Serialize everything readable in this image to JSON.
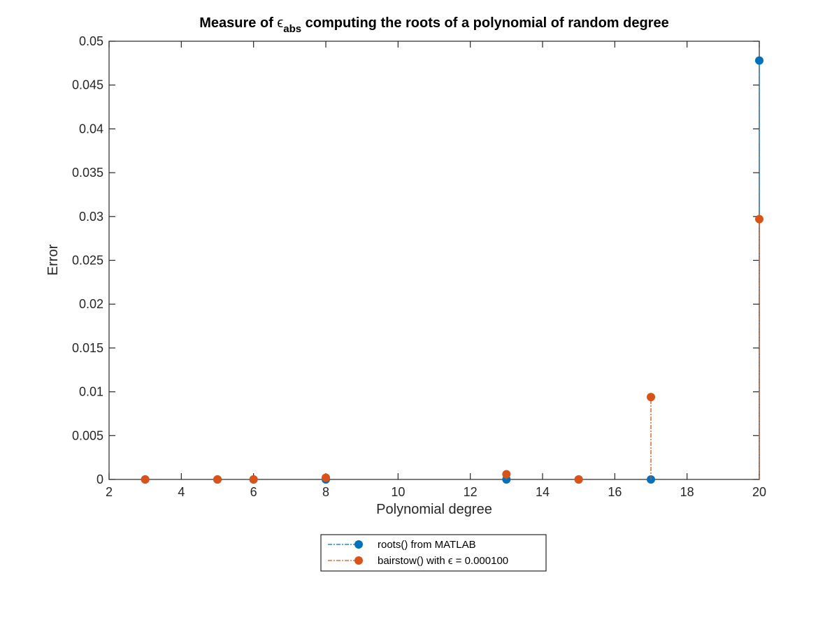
{
  "chart_data": {
    "type": "stem",
    "title": {
      "prefix": "Measure of ",
      "symbol": "ϵ",
      "subscript": "abs",
      "suffix": " computing the roots of a polynomial of random degree"
    },
    "xlabel": "Polynomial degree",
    "ylabel": "Error",
    "xlim": [
      2,
      20
    ],
    "ylim": [
      0,
      0.05
    ],
    "xticks": [
      "2",
      "4",
      "6",
      "8",
      "10",
      "12",
      "14",
      "16",
      "18",
      "20"
    ],
    "yticks": [
      "0",
      "0.005",
      "0.01",
      "0.015",
      "0.02",
      "0.025",
      "0.03",
      "0.035",
      "0.04",
      "0.045",
      "0.05"
    ],
    "grid": false,
    "legend_position": "below-plot",
    "series": [
      {
        "name": "roots() from MATLAB",
        "color": "#0072bd",
        "x": [
          3,
          5,
          6,
          8,
          13,
          15,
          17,
          20
        ],
        "y": [
          0,
          0,
          0,
          0,
          0,
          0,
          0,
          0.0478
        ]
      },
      {
        "name": "bairstow() with ϵ = 0.000100",
        "color": "#d95319",
        "x": [
          3,
          5,
          6,
          8,
          13,
          15,
          17,
          20
        ],
        "y": [
          0,
          0,
          0,
          0.0002,
          0.0006,
          0,
          0.0094,
          0.0297
        ]
      }
    ]
  }
}
